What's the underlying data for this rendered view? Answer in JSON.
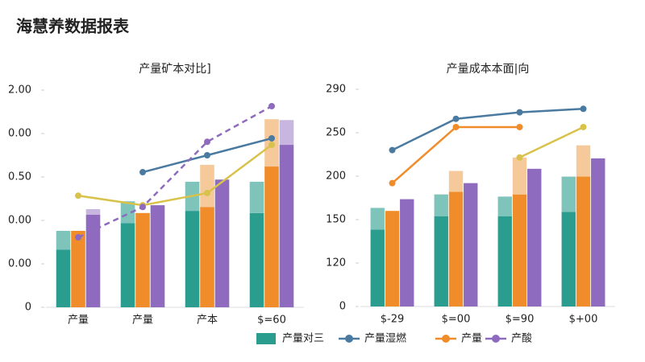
{
  "page": {
    "title": "海慧养数据报表"
  },
  "legend": [
    {
      "name": "产量对三",
      "color": "#2a9d8f",
      "kind": "bar"
    },
    {
      "name": "产量湿燃",
      "color": "#4a7aa0",
      "kind": "line"
    },
    {
      "name": "产量",
      "color": "#f08c2a",
      "kind": "line"
    },
    {
      "name": "产酸",
      "color": "#8e6bbf",
      "kind": "line"
    }
  ],
  "chart_data": [
    {
      "type": "bar",
      "title": "产量矿本对比]",
      "categories": [
        "产量",
        "产量",
        "产本",
        "$=60"
      ],
      "ylim": [
        0,
        5
      ],
      "yticks": [
        0,
        {
          "value": 1,
          "label": "0.00"
        },
        {
          "value": 2,
          "label": "0.00"
        },
        {
          "value": 3,
          "label": "0.50"
        },
        {
          "value": 4,
          "label": "0.00"
        },
        {
          "value": 5,
          "label": "2.00"
        }
      ],
      "grid": false,
      "bar_series": [
        {
          "color": "#2a9d8f",
          "upper_color": "#7fc4bb",
          "values": [
            1.33,
            1.94,
            2.22,
            2.17
          ],
          "upper_values": [
            0.43,
            0.5,
            0.67,
            0.72
          ]
        },
        {
          "color": "#f08c2a",
          "upper_color": "#f6c99a",
          "values": [
            1.76,
            2.17,
            2.31,
            3.24
          ],
          "upper_values": [
            0,
            0,
            0.97,
            1.09
          ]
        },
        {
          "color": "#8e6bbf",
          "upper_color": "#c9b6e0",
          "values": [
            2.13,
            2.35,
            2.94,
            3.74
          ],
          "upper_values": [
            0.13,
            0,
            0,
            0.57
          ]
        }
      ],
      "line_series": [
        {
          "color": "#4a7aa0",
          "dashed": false,
          "values": [
            null,
            3.11,
            3.5,
            3.89
          ]
        },
        {
          "color": "#d9c24c",
          "dashed": false,
          "values": [
            2.57,
            2.35,
            2.63,
            3.74
          ]
        },
        {
          "color": "#8e6bbf",
          "dashed": true,
          "values": [
            1.61,
            2.31,
            3.81,
            4.63
          ]
        }
      ]
    },
    {
      "type": "bar",
      "title": "产量成本本面|向",
      "categories": [
        "$-29",
        "$=00",
        "$=90",
        "$+00"
      ],
      "ylim": [
        0,
        5
      ],
      "yticks": [
        0,
        {
          "value": 1,
          "label": "120"
        },
        {
          "value": 2,
          "label": "150"
        },
        {
          "value": 3,
          "label": "200"
        },
        {
          "value": 4,
          "label": "250"
        },
        {
          "value": 5,
          "label": "290"
        }
      ],
      "grid": false,
      "bar_series": [
        {
          "color": "#2a9d8f",
          "upper_color": "#7fc4bb",
          "values": [
            1.77,
            2.08,
            2.08,
            2.18
          ],
          "upper_values": [
            0.5,
            0.5,
            0.45,
            0.81
          ]
        },
        {
          "color": "#f08c2a",
          "upper_color": "#f6c99a",
          "values": [
            2.2,
            2.64,
            2.58,
            2.99
          ],
          "upper_values": [
            0,
            0.48,
            0.85,
            0.72
          ]
        },
        {
          "color": "#8e6bbf",
          "upper_color": "#c9b6e0",
          "values": [
            2.47,
            2.84,
            3.17,
            3.41
          ],
          "upper_values": [
            0,
            0,
            0,
            0
          ]
        }
      ],
      "line_series": [
        {
          "color": "#4a7aa0",
          "dashed": false,
          "values": [
            3.6,
            4.32,
            4.47,
            4.55
          ]
        },
        {
          "color": "#f08c2a",
          "dashed": false,
          "values": [
            2.84,
            4.13,
            4.13,
            null
          ]
        },
        {
          "color": "#d9c24c",
          "dashed": false,
          "values": [
            null,
            null,
            3.43,
            4.13
          ]
        }
      ]
    }
  ]
}
